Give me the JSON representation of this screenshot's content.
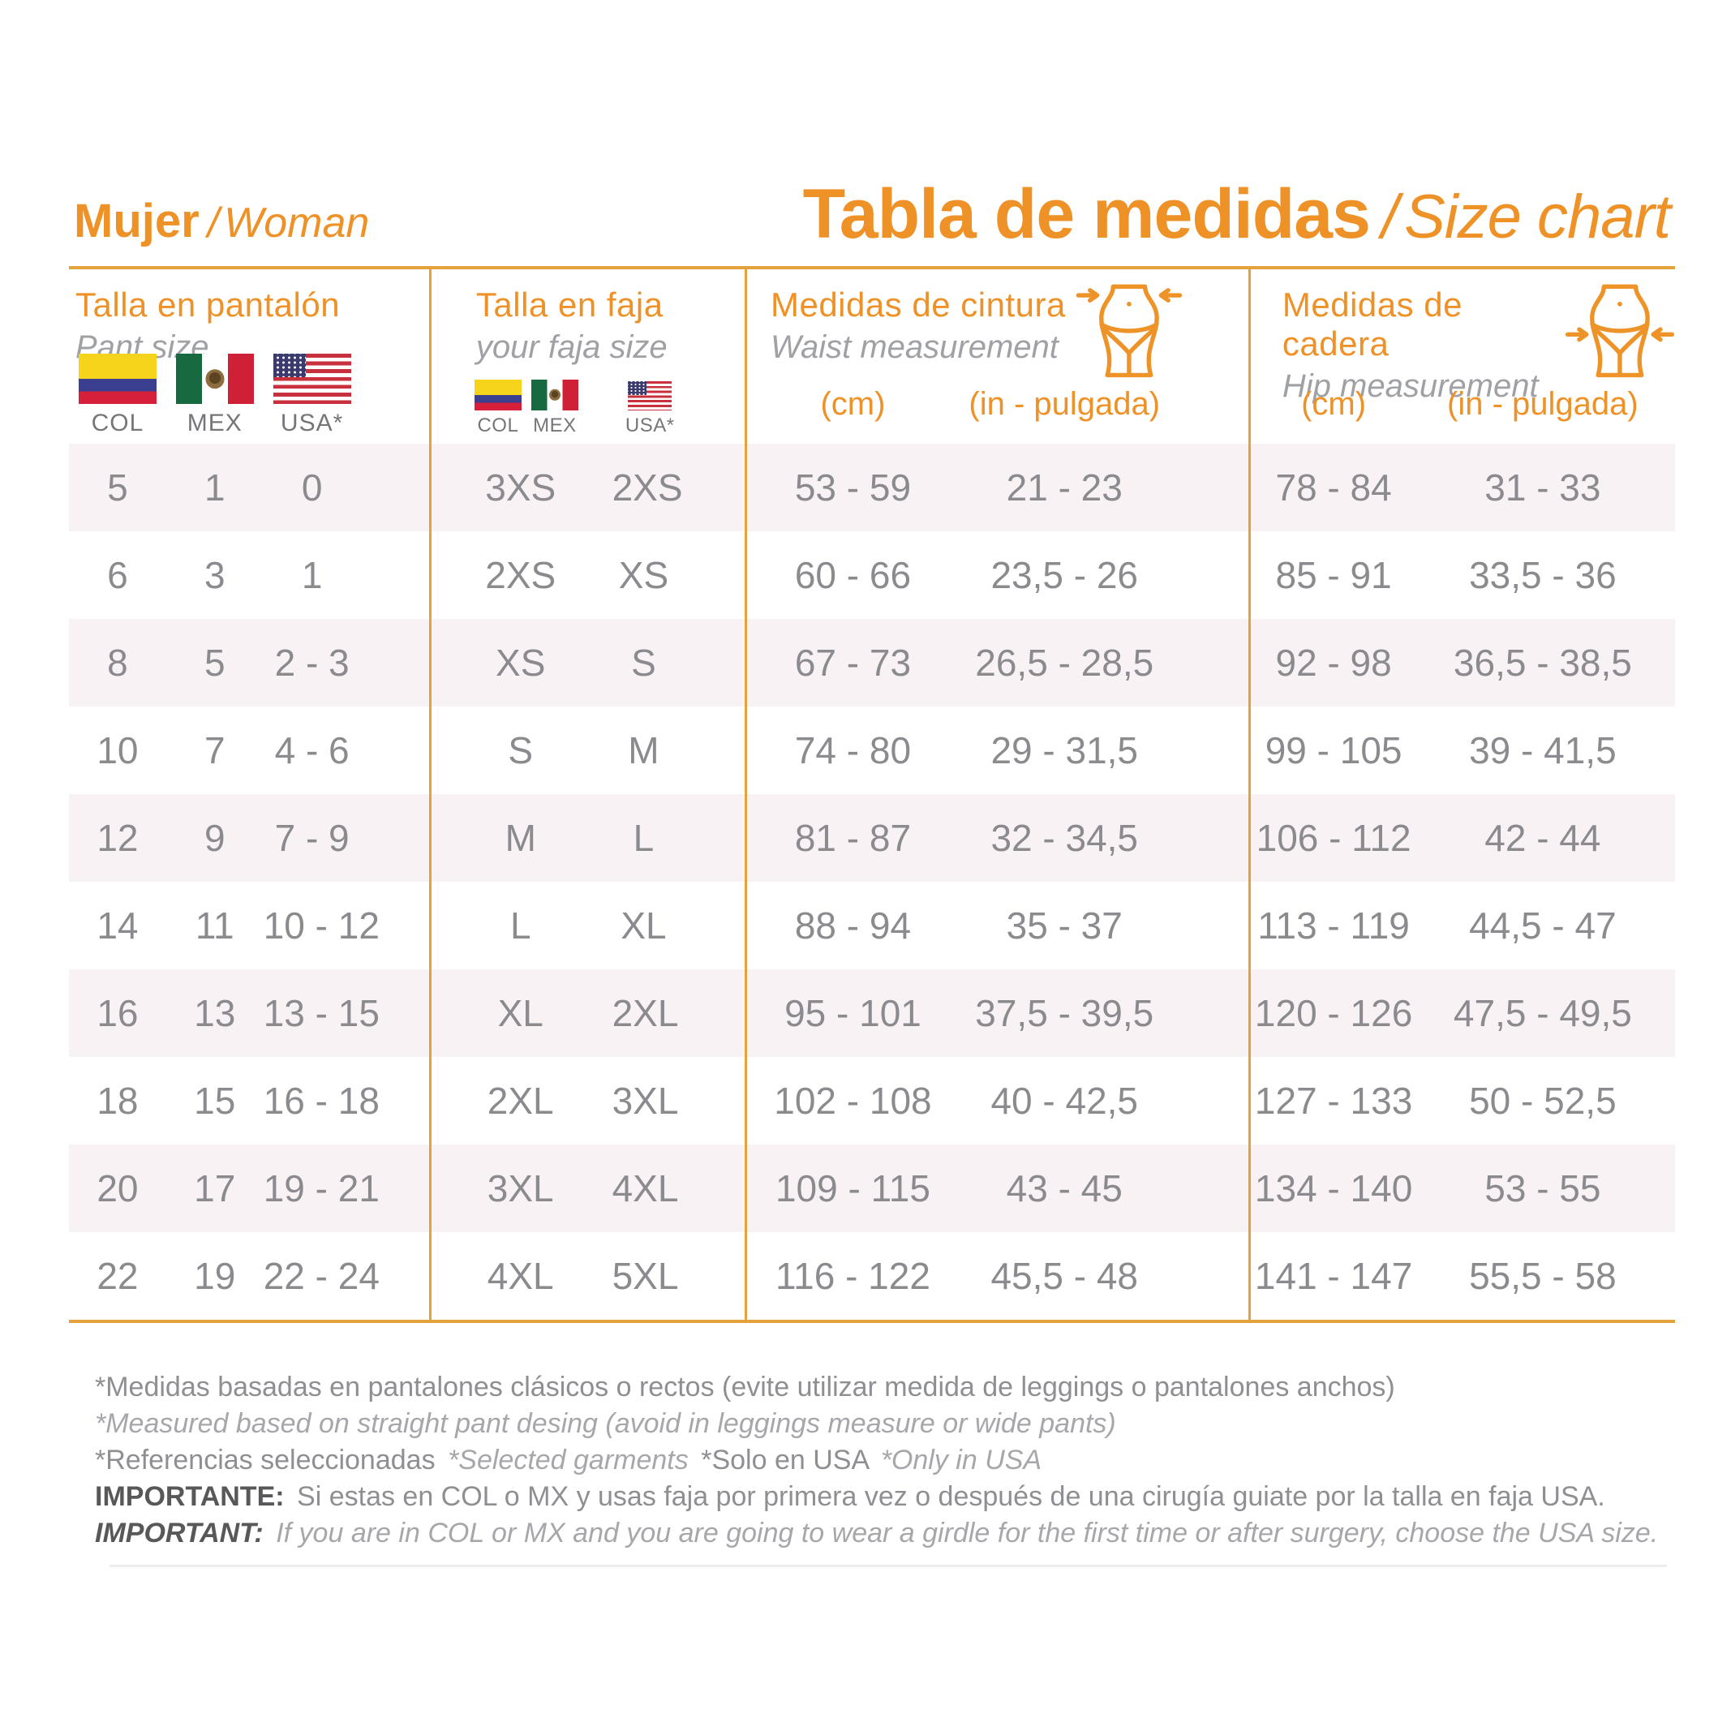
{
  "header": {
    "left_title_es": "Mujer",
    "left_title_sep": "/",
    "left_title_en": "Woman",
    "main_title_es": "Tabla de medidas",
    "main_title_sep": "/",
    "main_title_en": "Size chart"
  },
  "colors": {
    "accent": "#EE9227",
    "rule": "#E3A23C",
    "stripe": "#F9F2F5",
    "value_text": "#8B8B8F",
    "subtitle_text": "#9FA1A5",
    "note_dark": "#58585A"
  },
  "groups": [
    {
      "id": "pant",
      "title_es": "Talla en pantalón",
      "title_en": "Pant size",
      "flag_labels": [
        "COL",
        "MEX",
        "USA*"
      ]
    },
    {
      "id": "faja",
      "title_es": "Talla en faja",
      "title_en": "your faja size",
      "flag_labels": [
        "COL",
        "MEX",
        "USA*"
      ]
    },
    {
      "id": "waist",
      "title_es": "Medidas de cintura",
      "title_en": "Waist measurement",
      "icon": "waist-measurement-icon",
      "units": [
        "(cm)",
        "(in - pulgada)"
      ]
    },
    {
      "id": "hip",
      "title_es": "Medidas de cadera",
      "title_en": "Hip measurement",
      "icon": "hip-measurement-icon",
      "units": [
        "(cm)",
        "(in - pulgada)"
      ]
    }
  ],
  "rows": [
    {
      "pant": [
        "5",
        "1",
        "0"
      ],
      "faja": [
        "3XS",
        "2XS"
      ],
      "waist": [
        "53 - 59",
        "21 - 23"
      ],
      "hip": [
        "78 - 84",
        "31 - 33"
      ]
    },
    {
      "pant": [
        "6",
        "3",
        "1"
      ],
      "faja": [
        "2XS",
        "XS"
      ],
      "waist": [
        "60 - 66",
        "23,5 - 26"
      ],
      "hip": [
        "85 - 91",
        "33,5 - 36"
      ]
    },
    {
      "pant": [
        "8",
        "5",
        "2 - 3"
      ],
      "faja": [
        "XS",
        "S"
      ],
      "waist": [
        "67 - 73",
        "26,5 - 28,5"
      ],
      "hip": [
        "92 - 98",
        "36,5 - 38,5"
      ]
    },
    {
      "pant": [
        "10",
        "7",
        "4 - 6"
      ],
      "faja": [
        "S",
        "M"
      ],
      "waist": [
        "74 - 80",
        "29 - 31,5"
      ],
      "hip": [
        "99 - 105",
        "39 - 41,5"
      ]
    },
    {
      "pant": [
        "12",
        "9",
        "7 - 9"
      ],
      "faja": [
        "M",
        "L"
      ],
      "waist": [
        "81 - 87",
        "32 - 34,5"
      ],
      "hip": [
        "106 - 112",
        "42 - 44"
      ]
    },
    {
      "pant": [
        "14",
        "11",
        "10 - 12"
      ],
      "faja": [
        "L",
        "XL"
      ],
      "waist": [
        "88 - 94",
        "35 - 37"
      ],
      "hip": [
        "113 - 119",
        "44,5 - 47"
      ]
    },
    {
      "pant": [
        "16",
        "13",
        "13 - 15"
      ],
      "faja": [
        "XL",
        "2XL"
      ],
      "waist": [
        "95 - 101",
        "37,5 - 39,5"
      ],
      "hip": [
        "120 - 126",
        "47,5 - 49,5"
      ]
    },
    {
      "pant": [
        "18",
        "15",
        "16 - 18"
      ],
      "faja": [
        "2XL",
        "3XL"
      ],
      "waist": [
        "102 - 108",
        "40 - 42,5"
      ],
      "hip": [
        "127 - 133",
        "50 - 52,5"
      ]
    },
    {
      "pant": [
        "20",
        "17",
        "19 - 21"
      ],
      "faja": [
        "3XL",
        "4XL"
      ],
      "waist": [
        "109 - 115",
        "43 - 45"
      ],
      "hip": [
        "134 - 140",
        "53 - 55"
      ]
    },
    {
      "pant": [
        "22",
        "19",
        "22 - 24"
      ],
      "faja": [
        "4XL",
        "5XL"
      ],
      "waist": [
        "116 - 122",
        "45,5 - 48"
      ],
      "hip": [
        "141 - 147",
        "55,5 - 58"
      ]
    }
  ],
  "notes": {
    "line1_es": "*Medidas basadas en pantalones clásicos o rectos (evite utilizar medida de leggings o pantalones anchos)",
    "line2_en": "*Measured based on straight pant desing (avoid in leggings measure or wide pants)",
    "line3_parts": [
      "*Referencias seleccionadas",
      "*Selected garments",
      "*Solo en USA",
      "*Only in USA"
    ],
    "line4_label": "IMPORTANTE:",
    "line4_text": "Si estas en COL o MX y usas faja por primera vez o después de una cirugía guiate por la talla en faja USA.",
    "line5_label": "IMPORTANT:",
    "line5_text": "If you are in COL or MX and you are going to wear a girdle for the first time or after surgery, choose the USA size."
  }
}
